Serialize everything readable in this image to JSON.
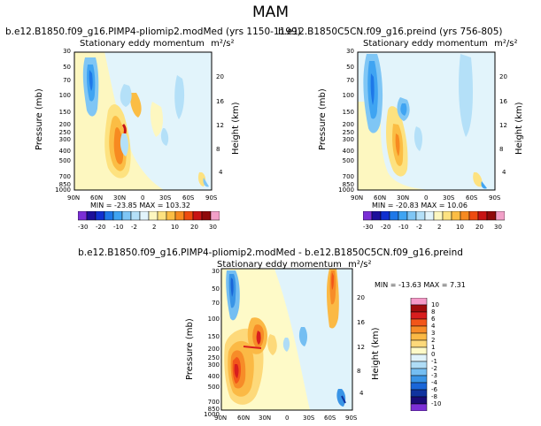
{
  "figure": {
    "title": "MAM"
  },
  "panels": [
    {
      "header": "b.e12.B1850.f09_g16.PIMP4-pliomip2.modMed (yrs 1150-1199)",
      "subtitle": "Stationary eddy momentum",
      "units": "m²/s²",
      "stats": "MIN = -23.85   MAX = 103.32"
    },
    {
      "header": "b.e12.B1850C5CN.f09_g16.preind (yrs 756-805)",
      "subtitle": "Stationary eddy momentum",
      "units": "m²/s²",
      "stats": "MIN = -20.83   MAX = 10.06"
    },
    {
      "header": "b.e12.B1850.f09_g16.PIMP4-pliomip2.modMed - b.e12.B1850C5CN.f09_g16.preind",
      "subtitle": "Stationary eddy momentum",
      "units": "m²/s²",
      "stats": "MIN = -13.63   MAX = 7.31"
    }
  ],
  "axes": {
    "ylabel_left": "Pressure (mb)",
    "ylabel_right": "Height (km)",
    "pressure_ticks": [
      "30",
      "50",
      "70",
      "100",
      "150",
      "200",
      "250",
      "300",
      "400",
      "500",
      "700",
      "850",
      "1000"
    ],
    "height_ticks": [
      "20",
      "16",
      "12",
      "8",
      "4"
    ],
    "lat_ticks": [
      "90N",
      "60N",
      "30N",
      "0",
      "30S",
      "60S",
      "90S"
    ]
  },
  "colorbar_top": {
    "labels": [
      "-30",
      "-20",
      "-10",
      "-2",
      "2",
      "10",
      "20",
      "30"
    ],
    "colors": [
      "#7b2fd6",
      "#1c0f9a",
      "#1030d0",
      "#1e78e8",
      "#3fa4f2",
      "#7fc6f5",
      "#b4e0f8",
      "#e2f4fb",
      "#fdf7c0",
      "#fde280",
      "#fbbd44",
      "#f78a20",
      "#ee4c10",
      "#c81414",
      "#8f0a0a",
      "#f2a0c8"
    ]
  },
  "colorbar_diff": {
    "labels": [
      "10",
      "8",
      "6",
      "4",
      "3",
      "2",
      "1",
      "0",
      "-1",
      "-2",
      "-3",
      "-4",
      "-6",
      "-8",
      "-10"
    ],
    "colors": [
      "#f59ac8",
      "#a00c0c",
      "#d81e1e",
      "#f2561a",
      "#f78c28",
      "#fbb945",
      "#fdd97a",
      "#fefac8",
      "#e0f3fb",
      "#afdcf6",
      "#74bef2",
      "#3994e6",
      "#1a66d8",
      "#10339f",
      "#1a0b78",
      "#7b2fd6"
    ]
  },
  "chart_data": [
    {
      "type": "heatmap",
      "title": "b.e12.B1850.f09_g16.PIMP4-pliomip2.modMed (yrs 1150-1199)",
      "variable": "Stationary eddy momentum",
      "units": "m2/s2",
      "x_ticks": [
        "90N",
        "60N",
        "30N",
        "0",
        "30S",
        "60S",
        "90S"
      ],
      "y_ticks_pressure_mb": [
        30,
        50,
        70,
        100,
        150,
        200,
        250,
        300,
        400,
        500,
        700,
        850,
        1000
      ],
      "y_ticks_height_km": [
        20,
        16,
        12,
        8,
        4
      ],
      "contour_levels": [
        -30,
        -20,
        -10,
        -2,
        2,
        10,
        20,
        30
      ],
      "min": -23.85,
      "max": 103.32
    },
    {
      "type": "heatmap",
      "title": "b.e12.B1850C5CN.f09_g16.preind (yrs 756-805)",
      "variable": "Stationary eddy momentum",
      "units": "m2/s2",
      "x_ticks": [
        "90N",
        "60N",
        "30N",
        "0",
        "30S",
        "60S",
        "90S"
      ],
      "y_ticks_pressure_mb": [
        30,
        50,
        70,
        100,
        150,
        200,
        250,
        300,
        400,
        500,
        700,
        850,
        1000
      ],
      "y_ticks_height_km": [
        20,
        16,
        12,
        8,
        4
      ],
      "contour_levels": [
        -30,
        -20,
        -10,
        -2,
        2,
        10,
        20,
        30
      ],
      "min": -20.83,
      "max": 10.06
    },
    {
      "type": "heatmap",
      "title": "b.e12.B1850.f09_g16.PIMP4-pliomip2.modMed - b.e12.B1850C5CN.f09_g16.preind",
      "variable": "Stationary eddy momentum",
      "units": "m2/s2",
      "x_ticks": [
        "90N",
        "60N",
        "30N",
        "0",
        "30S",
        "60S",
        "90S"
      ],
      "y_ticks_pressure_mb": [
        30,
        50,
        70,
        100,
        150,
        200,
        250,
        300,
        400,
        500,
        700,
        850,
        1000
      ],
      "y_ticks_height_km": [
        20,
        16,
        12,
        8,
        4
      ],
      "contour_levels": [
        -10,
        -8,
        -6,
        -4,
        -3,
        -2,
        -1,
        0,
        1,
        2,
        3,
        4,
        6,
        8,
        10
      ],
      "min": -13.63,
      "max": 7.31
    }
  ]
}
